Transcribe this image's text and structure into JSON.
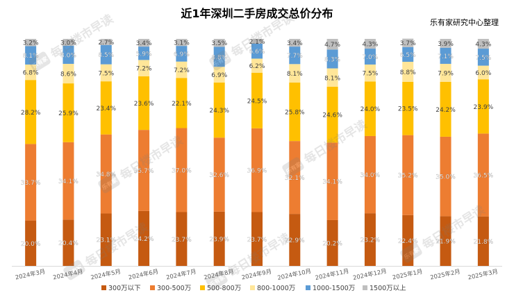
{
  "chart_data": {
    "type": "stacked-bar-100",
    "title": "近1年深圳二手房成交总价分布",
    "source_note": "乐有家研究中心整理",
    "watermark": "每日楼市早读",
    "watermark_logo_text": "乐有家",
    "categories": [
      "2024年3月",
      "2024年4月",
      "2024年5月",
      "2024年6月",
      "2024年7月",
      "2024年8月",
      "2024年9月",
      "2024年10月",
      "2024年11月",
      "2024年12月",
      "2025年1月",
      "2025年2月",
      "2025年3月"
    ],
    "series": [
      {
        "name": "300万以下",
        "color": "#C55A11",
        "values": [
          20.0,
          20.4,
          23.1,
          24.2,
          23.7,
          23.9,
          23.7,
          22.9,
          20.2,
          23.2,
          22.4,
          21.9,
          21.8
        ]
      },
      {
        "name": "300-500万",
        "color": "#ED7D31",
        "values": [
          33.7,
          34.1,
          34.8,
          35.7,
          37.0,
          32.6,
          36.9,
          32.1,
          34.1,
          34.0,
          35.2,
          35.0,
          36.5
        ]
      },
      {
        "name": "500-800万",
        "color": "#FFC000",
        "values": [
          28.2,
          25.9,
          23.4,
          23.6,
          22.1,
          24.3,
          24.5,
          25.8,
          24.6,
          24.0,
          23.5,
          24.2,
          23.9
        ]
      },
      {
        "name": "800-1000万",
        "color": "#FFE699",
        "values": [
          6.8,
          8.6,
          7.5,
          7.2,
          7.2,
          6.9,
          6.2,
          8.1,
          8.1,
          7.5,
          8.8,
          7.9,
          6.0
        ]
      },
      {
        "name": "1000-1500万",
        "color": "#5B9BD5",
        "values": [
          8.1,
          8.0,
          8.5,
          5.9,
          6.9,
          8.8,
          6.6,
          7.7,
          8.3,
          7.0,
          6.5,
          7.1,
          7.5
        ]
      },
      {
        "name": "1500万以上",
        "color": "#BFBFBF",
        "values": [
          3.2,
          3.0,
          2.7,
          3.4,
          3.1,
          3.5,
          2.1,
          3.4,
          4.7,
          4.3,
          3.7,
          3.9,
          4.3
        ]
      }
    ],
    "value_suffix": "%",
    "ylim": [
      0,
      100
    ],
    "legend_position": "bottom-center",
    "grid": false
  }
}
